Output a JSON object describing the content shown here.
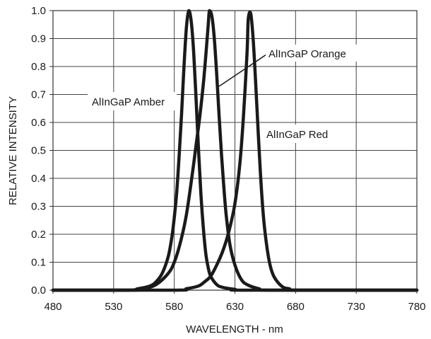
{
  "chart_data": {
    "type": "line",
    "xlabel": "WAVELENGTH - nm",
    "ylabel": "RELATIVE INTENSITY",
    "xlim": [
      480,
      780
    ],
    "ylim": [
      0,
      1
    ],
    "x_ticks": [
      "480",
      "530",
      "580",
      "630",
      "680",
      "730",
      "780"
    ],
    "y_ticks": [
      "0.0",
      "0.1",
      "0.2",
      "0.3",
      "0.4",
      "0.5",
      "0.6",
      "0.7",
      "0.8",
      "0.9",
      "1.0"
    ],
    "grid": true,
    "series": [
      {
        "name": "AlInGaP Amber",
        "color": "#1a1a1a",
        "x": [
          480,
          540,
          550,
          560,
          565,
          570,
          575,
          578,
          580,
          582,
          584,
          586,
          588,
          590,
          592,
          594,
          596,
          598,
          600,
          602,
          604,
          606,
          608,
          610,
          615,
          620,
          630,
          640,
          780
        ],
        "y": [
          0,
          0.0,
          0.005,
          0.015,
          0.03,
          0.06,
          0.12,
          0.19,
          0.26,
          0.35,
          0.48,
          0.63,
          0.8,
          0.94,
          1.0,
          0.96,
          0.85,
          0.68,
          0.5,
          0.34,
          0.22,
          0.13,
          0.08,
          0.05,
          0.02,
          0.01,
          0.003,
          0.0,
          0
        ]
      },
      {
        "name": "AlInGaP Orange",
        "color": "#1a1a1a",
        "x": [
          480,
          545,
          555,
          565,
          575,
          580,
          585,
          590,
          595,
          598,
          601,
          604,
          606,
          608,
          609,
          611,
          613,
          615,
          617,
          619,
          621,
          623,
          626,
          630,
          635,
          640,
          650,
          660,
          780
        ],
        "y": [
          0,
          0.0,
          0.005,
          0.02,
          0.06,
          0.1,
          0.17,
          0.27,
          0.42,
          0.52,
          0.62,
          0.74,
          0.84,
          0.95,
          1.0,
          0.98,
          0.9,
          0.77,
          0.62,
          0.48,
          0.36,
          0.26,
          0.16,
          0.09,
          0.04,
          0.02,
          0.005,
          0.0,
          0
        ]
      },
      {
        "name": "AlInGaP Red",
        "color": "#1a1a1a",
        "x": [
          480,
          580,
          590,
          600,
          605,
          610,
          615,
          620,
          625,
          630,
          634,
          637,
          640,
          641,
          643,
          645,
          647,
          649,
          651,
          653,
          655,
          658,
          661,
          665,
          670,
          675,
          680,
          780
        ],
        "y": [
          0,
          0.0,
          0.005,
          0.015,
          0.03,
          0.05,
          0.09,
          0.14,
          0.21,
          0.31,
          0.45,
          0.62,
          0.85,
          0.97,
          0.99,
          0.9,
          0.75,
          0.58,
          0.42,
          0.29,
          0.2,
          0.11,
          0.06,
          0.03,
          0.01,
          0.005,
          0.0,
          0
        ]
      }
    ],
    "annotations": [
      {
        "text": "AlInGaP Amber",
        "series": "AlInGaP Amber"
      },
      {
        "text": "AlInGaP Orange",
        "series": "AlInGaP Orange"
      },
      {
        "text": "AlInGaP Red",
        "series": "AlInGaP Red"
      }
    ]
  }
}
